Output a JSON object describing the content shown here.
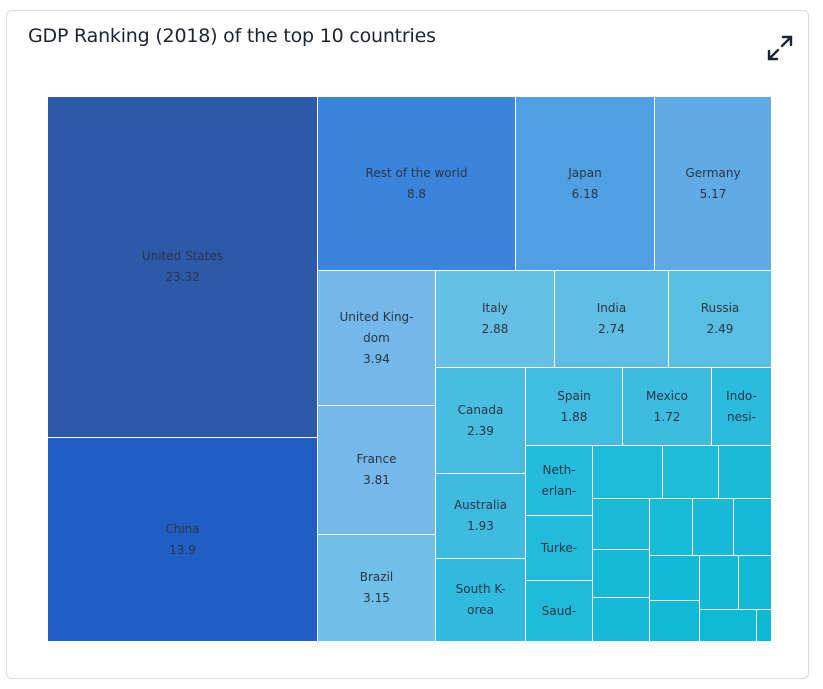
{
  "card": {
    "title": "GDP Ranking (2018) of the top 10 countries",
    "expand_icon": "expand-icon"
  },
  "chart_data": {
    "type": "treemap",
    "title": "GDP Ranking (2018) of the top 10 countries",
    "nodes": [
      {
        "label": [
          "United States"
        ],
        "value": "23.32",
        "color": "#2c5aa8"
      },
      {
        "label": [
          "China"
        ],
        "value": "13.9",
        "color": "#1f5fc4"
      },
      {
        "label": [
          "Rest of the world"
        ],
        "value": "8.8",
        "color": "#3a84dc"
      },
      {
        "label": [
          "Japan"
        ],
        "value": "6.18",
        "color": "#519fe3"
      },
      {
        "label": [
          "Germany"
        ],
        "value": "5.17",
        "color": "#60aae6"
      },
      {
        "label": [
          "United King-",
          "dom"
        ],
        "value": "3.94",
        "color": "#73b8e8"
      },
      {
        "label": [
          "France"
        ],
        "value": "3.81",
        "color": "#74b9e8"
      },
      {
        "label": [
          "Brazil"
        ],
        "value": "3.15",
        "color": "#6fc0e8"
      },
      {
        "label": [
          "Italy"
        ],
        "value": "2.88",
        "color": "#66bfe5"
      },
      {
        "label": [
          "India"
        ],
        "value": "2.74",
        "color": "#60bde3"
      },
      {
        "label": [
          "Russia"
        ],
        "value": "2.49",
        "color": "#58bfe2"
      },
      {
        "label": [
          "Canada"
        ],
        "value": "2.39",
        "color": "#48bde0"
      },
      {
        "label": [
          "Australia"
        ],
        "value": "1.93",
        "color": "#3fbbe0"
      },
      {
        "label": [
          "South K-",
          "orea"
        ],
        "value": null,
        "color": "#30bbde"
      },
      {
        "label": [
          "Spain"
        ],
        "value": "1.88",
        "color": "#40bde0"
      },
      {
        "label": [
          "Mexico"
        ],
        "value": "1.72",
        "color": "#3cbcdf"
      },
      {
        "label": [
          "Indo-",
          "nesi-"
        ],
        "value": null,
        "color": "#2bbbdd"
      },
      {
        "label": [
          "Neth-",
          "erlan-"
        ],
        "value": null,
        "color": "#25bbdc"
      },
      {
        "label": [
          "Turke-"
        ],
        "value": null,
        "color": "#22bbdb"
      },
      {
        "label": [
          "Saud-"
        ],
        "value": null,
        "color": "#20bbda"
      },
      {
        "label": [],
        "value": null,
        "color": "#1cbbd9"
      },
      {
        "label": [],
        "value": null,
        "color": "#1bbbd9"
      },
      {
        "label": [],
        "value": null,
        "color": "#1abbd9"
      },
      {
        "label": [],
        "value": null,
        "color": "#19bbd8"
      },
      {
        "label": [],
        "value": null,
        "color": "#18bbd8"
      },
      {
        "label": [],
        "value": null,
        "color": "#17bad8"
      },
      {
        "label": [],
        "value": null,
        "color": "#16bad8"
      },
      {
        "label": [],
        "value": null,
        "color": "#15bad7"
      },
      {
        "label": [],
        "value": null,
        "color": "#14bad7"
      },
      {
        "label": [],
        "value": null,
        "color": "#13bad7"
      },
      {
        "label": [],
        "value": null,
        "color": "#12bad7"
      },
      {
        "label": [],
        "value": null,
        "color": "#11bad6"
      },
      {
        "label": [],
        "value": null,
        "color": "#10bad6"
      },
      {
        "label": [],
        "value": null,
        "color": "#0fbad6"
      },
      {
        "label": [],
        "value": null,
        "color": "#0eb9d6"
      }
    ]
  }
}
